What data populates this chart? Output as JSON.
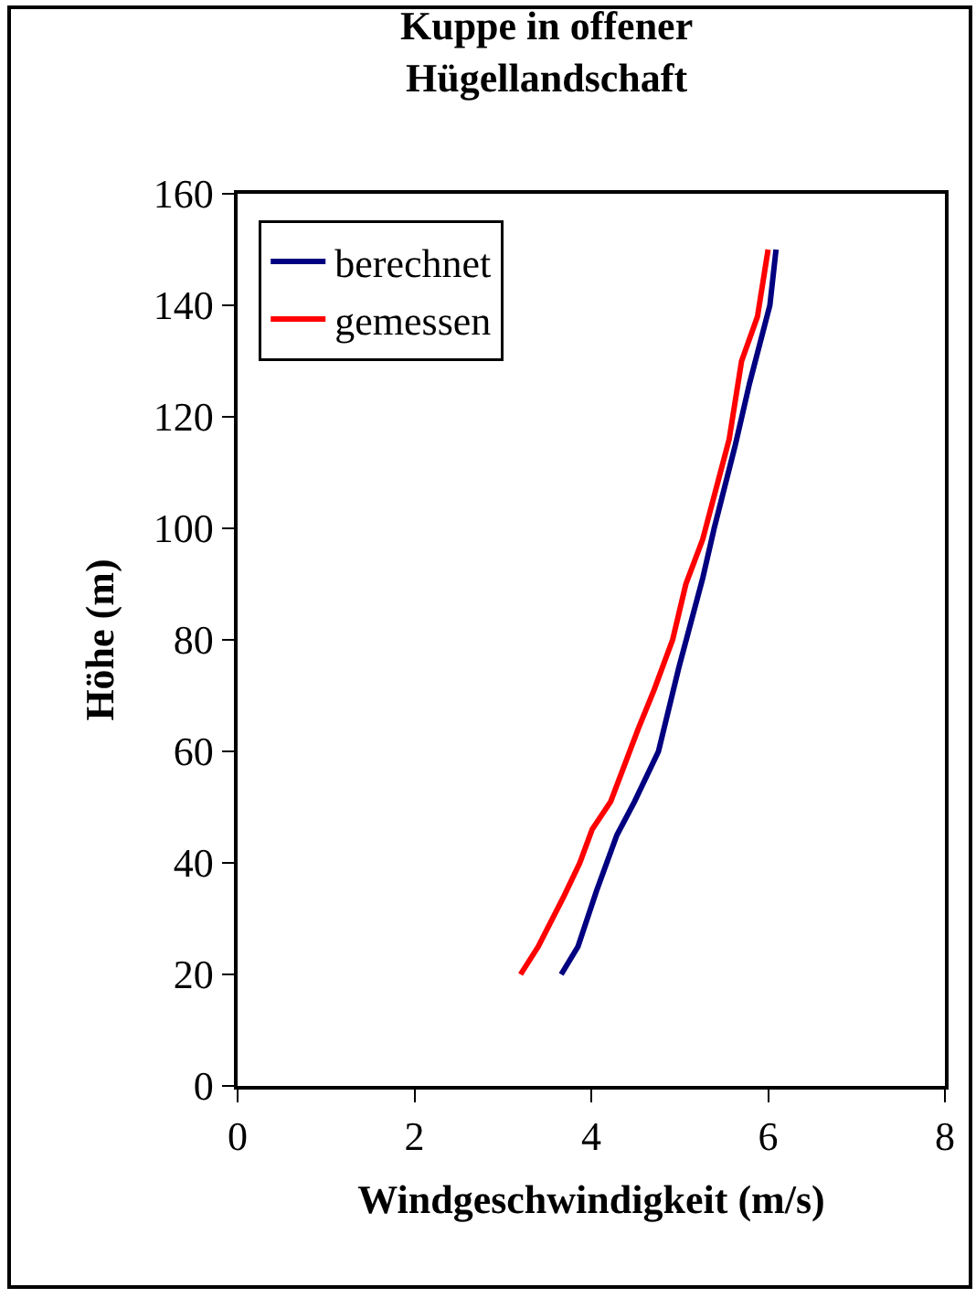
{
  "chart_data": {
    "type": "line",
    "title": "Kuppe in offener\nHügellandschaft",
    "xlabel": "Windgeschwindigkeit (m/s)",
    "ylabel": "Höhe (m)",
    "xlim": [
      0,
      8
    ],
    "xticks": [
      0,
      2,
      4,
      6,
      8
    ],
    "ylim": [
      0,
      160
    ],
    "yticks": [
      0,
      20,
      40,
      60,
      80,
      100,
      120,
      140,
      160
    ],
    "legend": "top left",
    "marker": "none",
    "line_style": "solid",
    "series": [
      {
        "name": "berechnet",
        "color": "#000080",
        "x": [
          3.66,
          3.85,
          4.06,
          4.29,
          4.49,
          4.76,
          4.99,
          5.26,
          5.39,
          5.63,
          5.79,
          6.02,
          6.09
        ],
        "values": [
          20,
          25,
          35,
          45,
          51,
          60,
          75,
          91,
          100,
          115,
          126,
          140,
          150
        ]
      },
      {
        "name": "gemessen",
        "color": "#ff0000",
        "x": [
          3.2,
          3.4,
          3.69,
          3.87,
          4.01,
          4.22,
          4.53,
          4.71,
          4.92,
          5.07,
          5.26,
          5.46,
          5.56,
          5.7,
          5.88,
          6.0
        ],
        "values": [
          20,
          25,
          34,
          40,
          46,
          51,
          64,
          71,
          80,
          90,
          98,
          110,
          116,
          130,
          138,
          150
        ]
      }
    ]
  }
}
